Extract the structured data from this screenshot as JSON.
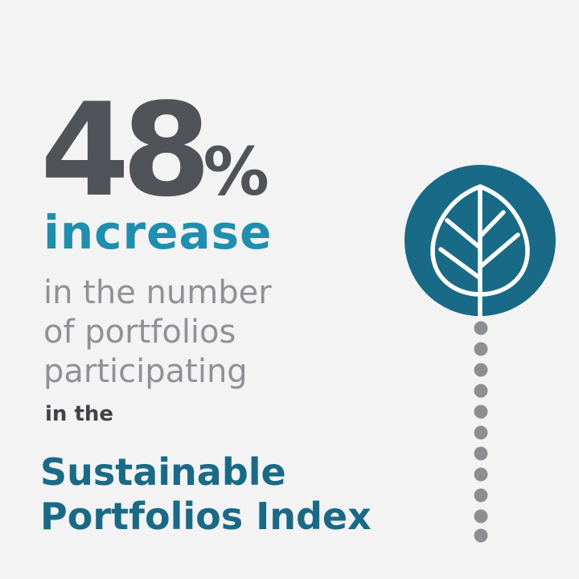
{
  "stat": {
    "number": "48",
    "suffix": "%",
    "word": "increase"
  },
  "description": {
    "lines": [
      "in the number",
      "of portfolios",
      "participating"
    ]
  },
  "connector": "in the",
  "index_title": {
    "lines": [
      "Sustainable",
      "Portfolios Index"
    ]
  },
  "colors": {
    "background": "#f3f3f4",
    "number": "#505357",
    "accent": "#1f8fb0",
    "description": "#8f9194",
    "title": "#186a86",
    "circle": "#186a86",
    "dots": "#8c8e91"
  },
  "icons": {
    "leaf": "leaf-icon",
    "dotted_line": "dotted-stem"
  }
}
